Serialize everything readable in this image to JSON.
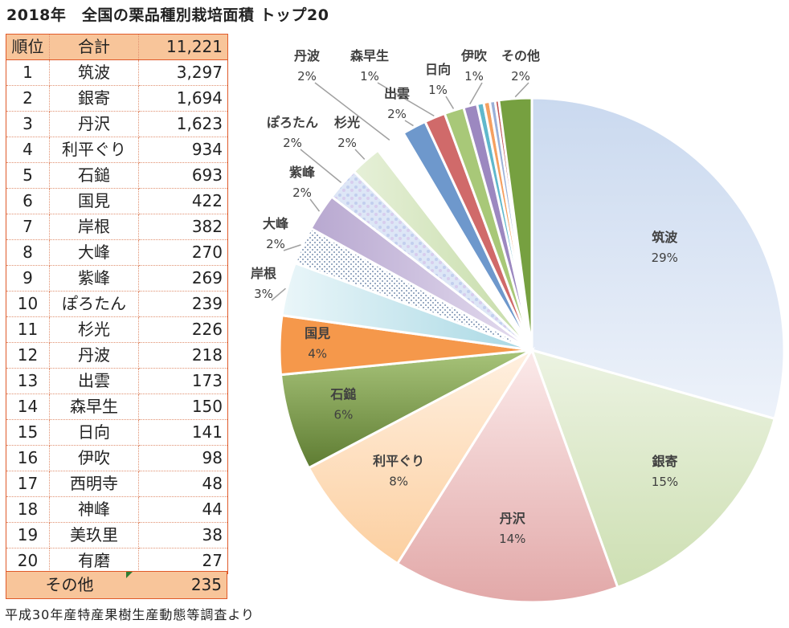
{
  "title": "2018年　全国の栗品種別栽培面積 トップ20",
  "table": {
    "header": {
      "rank": "順位",
      "name": "合計",
      "value": "11,221"
    },
    "rows": [
      {
        "rank": "1",
        "name": "筑波",
        "value": "3,297"
      },
      {
        "rank": "2",
        "name": "銀寄",
        "value": "1,694"
      },
      {
        "rank": "3",
        "name": "丹沢",
        "value": "1,623"
      },
      {
        "rank": "4",
        "name": "利平ぐり",
        "value": "934"
      },
      {
        "rank": "5",
        "name": "石鎚",
        "value": "693"
      },
      {
        "rank": "6",
        "name": "国見",
        "value": "422"
      },
      {
        "rank": "7",
        "name": "岸根",
        "value": "382"
      },
      {
        "rank": "8",
        "name": "大峰",
        "value": "270"
      },
      {
        "rank": "9",
        "name": "紫峰",
        "value": "269"
      },
      {
        "rank": "10",
        "name": "ぽろたん",
        "value": "239"
      },
      {
        "rank": "11",
        "name": "杉光",
        "value": "226"
      },
      {
        "rank": "12",
        "name": "丹波",
        "value": "218"
      },
      {
        "rank": "13",
        "name": "出雲",
        "value": "173"
      },
      {
        "rank": "14",
        "name": "森早生",
        "value": "150"
      },
      {
        "rank": "15",
        "name": "日向",
        "value": "141"
      },
      {
        "rank": "16",
        "name": "伊吹",
        "value": "98"
      },
      {
        "rank": "17",
        "name": "西明寺",
        "value": "48"
      },
      {
        "rank": "18",
        "name": "神峰",
        "value": "44"
      },
      {
        "rank": "19",
        "name": "美玖里",
        "value": "38"
      },
      {
        "rank": "20",
        "name": "有磨",
        "value": "27"
      }
    ],
    "other": {
      "name": "その他",
      "value": "235"
    }
  },
  "source": "平成30年産特産果樹生産動態等調査より",
  "chart_data": {
    "type": "pie",
    "title": "2018年　全国の栗品種別栽培面積 トップ20",
    "categories": [
      "筑波",
      "銀寄",
      "丹沢",
      "利平ぐり",
      "石鎚",
      "国見",
      "岸根",
      "大峰",
      "紫峰",
      "ぽろたん",
      "杉光",
      "丹波",
      "出雲",
      "森早生",
      "日向",
      "伊吹",
      "西明寺",
      "神峰",
      "美玖里",
      "有磨",
      "その他"
    ],
    "values": [
      3297,
      1694,
      1623,
      934,
      693,
      422,
      382,
      270,
      269,
      239,
      226,
      218,
      173,
      150,
      141,
      98,
      48,
      44,
      38,
      27,
      235
    ],
    "labels": [
      {
        "name": "筑波",
        "pct": "29%"
      },
      {
        "name": "銀寄",
        "pct": "15%"
      },
      {
        "name": "丹沢",
        "pct": "14%"
      },
      {
        "name": "利平ぐり",
        "pct": "8%"
      },
      {
        "name": "石鎚",
        "pct": "6%"
      },
      {
        "name": "国見",
        "pct": "4%"
      },
      {
        "name": "岸根",
        "pct": "3%"
      },
      {
        "name": "大峰",
        "pct": "2%"
      },
      {
        "name": "紫峰",
        "pct": "2%"
      },
      {
        "name": "ぽろたん",
        "pct": "2%"
      },
      {
        "name": "杉光",
        "pct": "2%"
      },
      {
        "name": "丹波",
        "pct": "2%"
      },
      {
        "name": "出雲",
        "pct": "2%"
      },
      {
        "name": "森早生",
        "pct": "1%"
      },
      {
        "name": "日向",
        "pct": "1%"
      },
      {
        "name": "伊吹",
        "pct": "1%"
      },
      {
        "name": "その他",
        "pct": "2%"
      }
    ],
    "colors": [
      "#aec5e4",
      "#d3e2ba",
      "#e8b4b4",
      "#fcd7b0",
      "#7f9e4c",
      "#f59b4d",
      "#b4dde6",
      "#d8d8e8",
      "#c4b8d8",
      "#c6d6f0",
      "#d8e8c0",
      "#e8e8e8",
      "#6e98cc",
      "#d06a6a",
      "#a8c878",
      "#9c88c0",
      "#60b8cc",
      "#f5a060",
      "#9ab0d8",
      "#c05050",
      "#76a040"
    ],
    "start_angle_deg": 0,
    "direction": "clockwise"
  }
}
